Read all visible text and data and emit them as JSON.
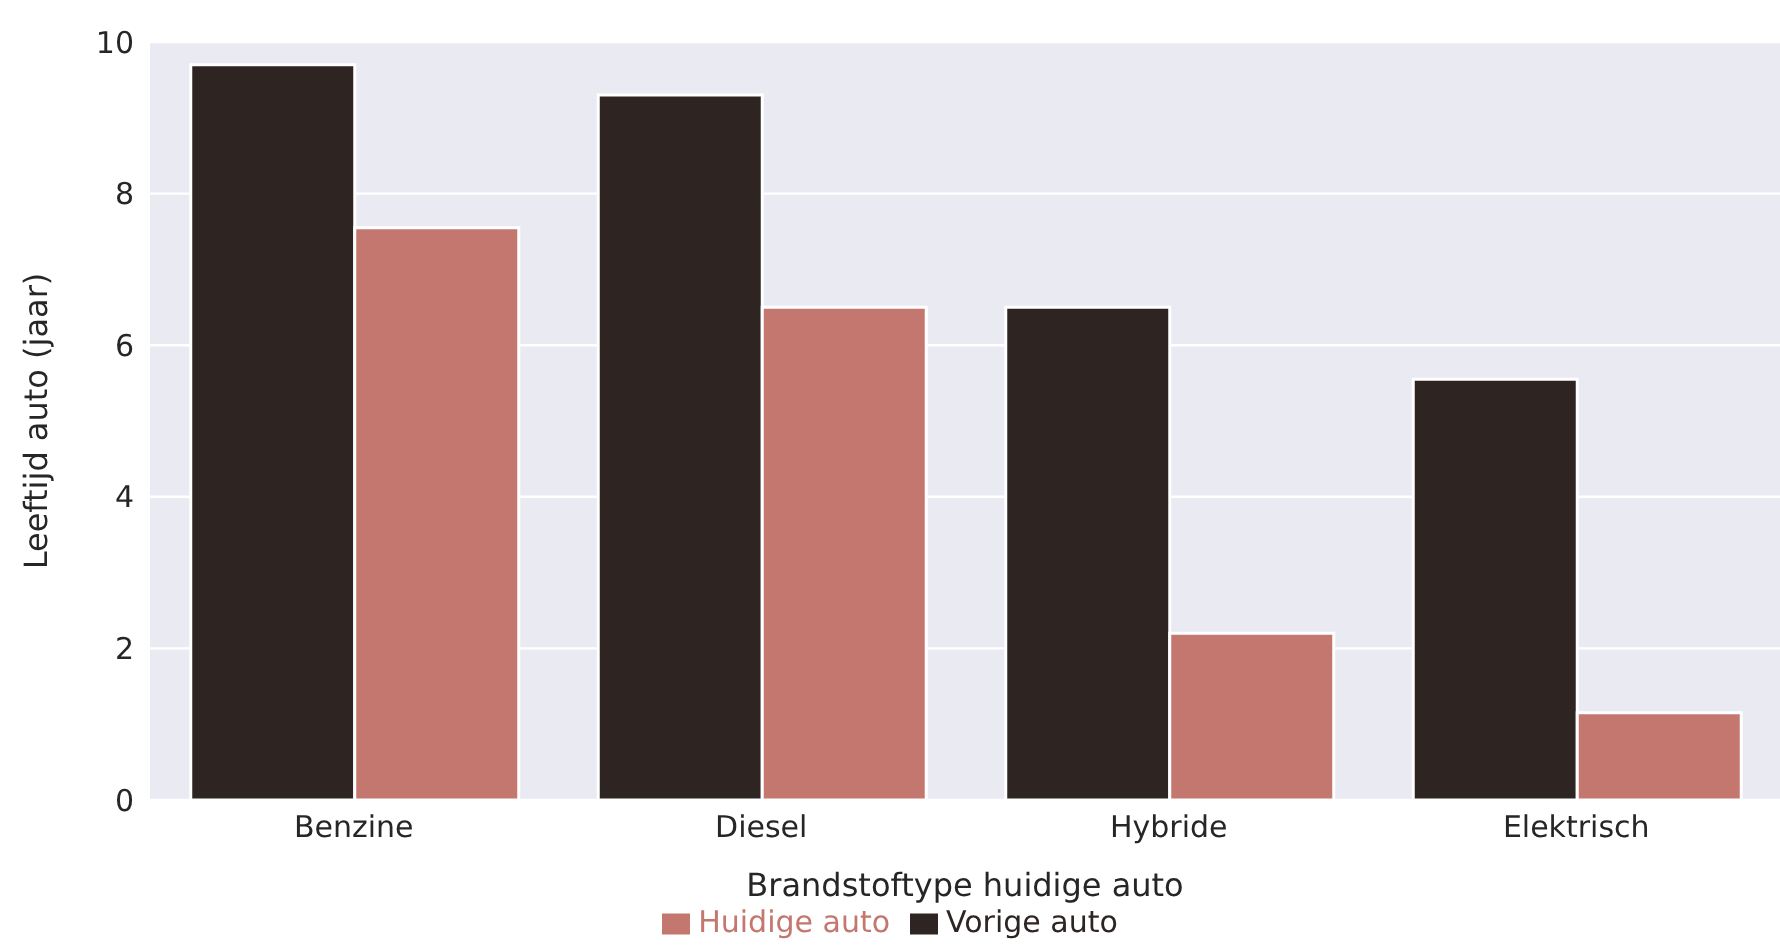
{
  "chart_data": {
    "type": "bar",
    "xlabel": "Brandstoftype huidige auto",
    "ylabel": "Leeftijd auto (jaar)",
    "categories": [
      "Benzine",
      "Diesel",
      "Hybride",
      "Elektrisch"
    ],
    "series": [
      {
        "name": "Vorige auto",
        "color": "#2e2523",
        "values": [
          9.7,
          9.3,
          6.5,
          5.55
        ]
      },
      {
        "name": "Huidige auto",
        "color": "#c4776e",
        "values": [
          7.55,
          6.5,
          2.2,
          1.15
        ]
      }
    ],
    "ylim": [
      0,
      10
    ],
    "yticks": [
      0,
      2,
      4,
      6,
      8,
      10
    ],
    "grid": "y",
    "legend": "bottom"
  }
}
